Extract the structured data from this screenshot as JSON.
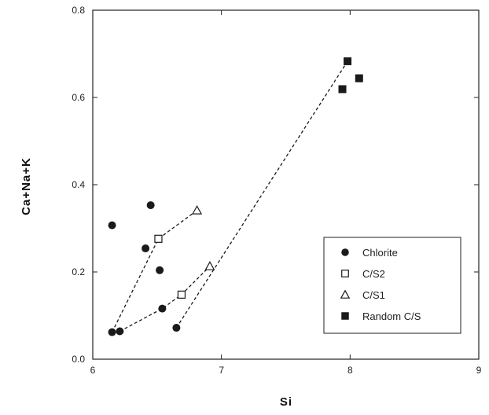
{
  "chart_data": {
    "type": "scatter",
    "title": "",
    "xlabel": "Si",
    "ylabel": "Ca+Na+K",
    "xlim": [
      6,
      9
    ],
    "ylim": [
      0,
      0.8
    ],
    "x_ticks": [
      "6",
      "7",
      "8",
      "9"
    ],
    "y_ticks": [
      "0.0",
      "0.2",
      "0.4",
      "0.6",
      "0.8"
    ],
    "grid": false,
    "legend_position": "lower-right",
    "series": [
      {
        "name": "Chlorite",
        "marker": "filled-circle",
        "points": [
          [
            6.15,
            0.307
          ],
          [
            6.45,
            0.353
          ],
          [
            6.41,
            0.254
          ],
          [
            6.52,
            0.204
          ],
          [
            6.54,
            0.116
          ],
          [
            6.65,
            0.072
          ],
          [
            6.15,
            0.062
          ],
          [
            6.21,
            0.064
          ]
        ]
      },
      {
        "name": "C/S2",
        "marker": "open-square",
        "points": [
          [
            6.51,
            0.276
          ],
          [
            6.69,
            0.148
          ]
        ]
      },
      {
        "name": "C/S1",
        "marker": "open-triangle",
        "points": [
          [
            6.81,
            0.341
          ],
          [
            6.91,
            0.213
          ]
        ]
      },
      {
        "name": "Random C/S",
        "marker": "filled-square",
        "points": [
          [
            7.98,
            0.683
          ],
          [
            7.94,
            0.619
          ],
          [
            8.07,
            0.644
          ]
        ]
      }
    ],
    "trend_lines": [
      [
        [
          6.15,
          0.062
        ],
        [
          6.51,
          0.276
        ],
        [
          6.81,
          0.341
        ]
      ],
      [
        [
          6.21,
          0.064
        ],
        [
          6.54,
          0.116
        ],
        [
          6.69,
          0.148
        ],
        [
          6.91,
          0.213
        ]
      ],
      [
        [
          6.65,
          0.072
        ],
        [
          7.98,
          0.683
        ]
      ]
    ],
    "colors": {
      "marker": "#1a1a1a",
      "axis": "#222222"
    }
  }
}
